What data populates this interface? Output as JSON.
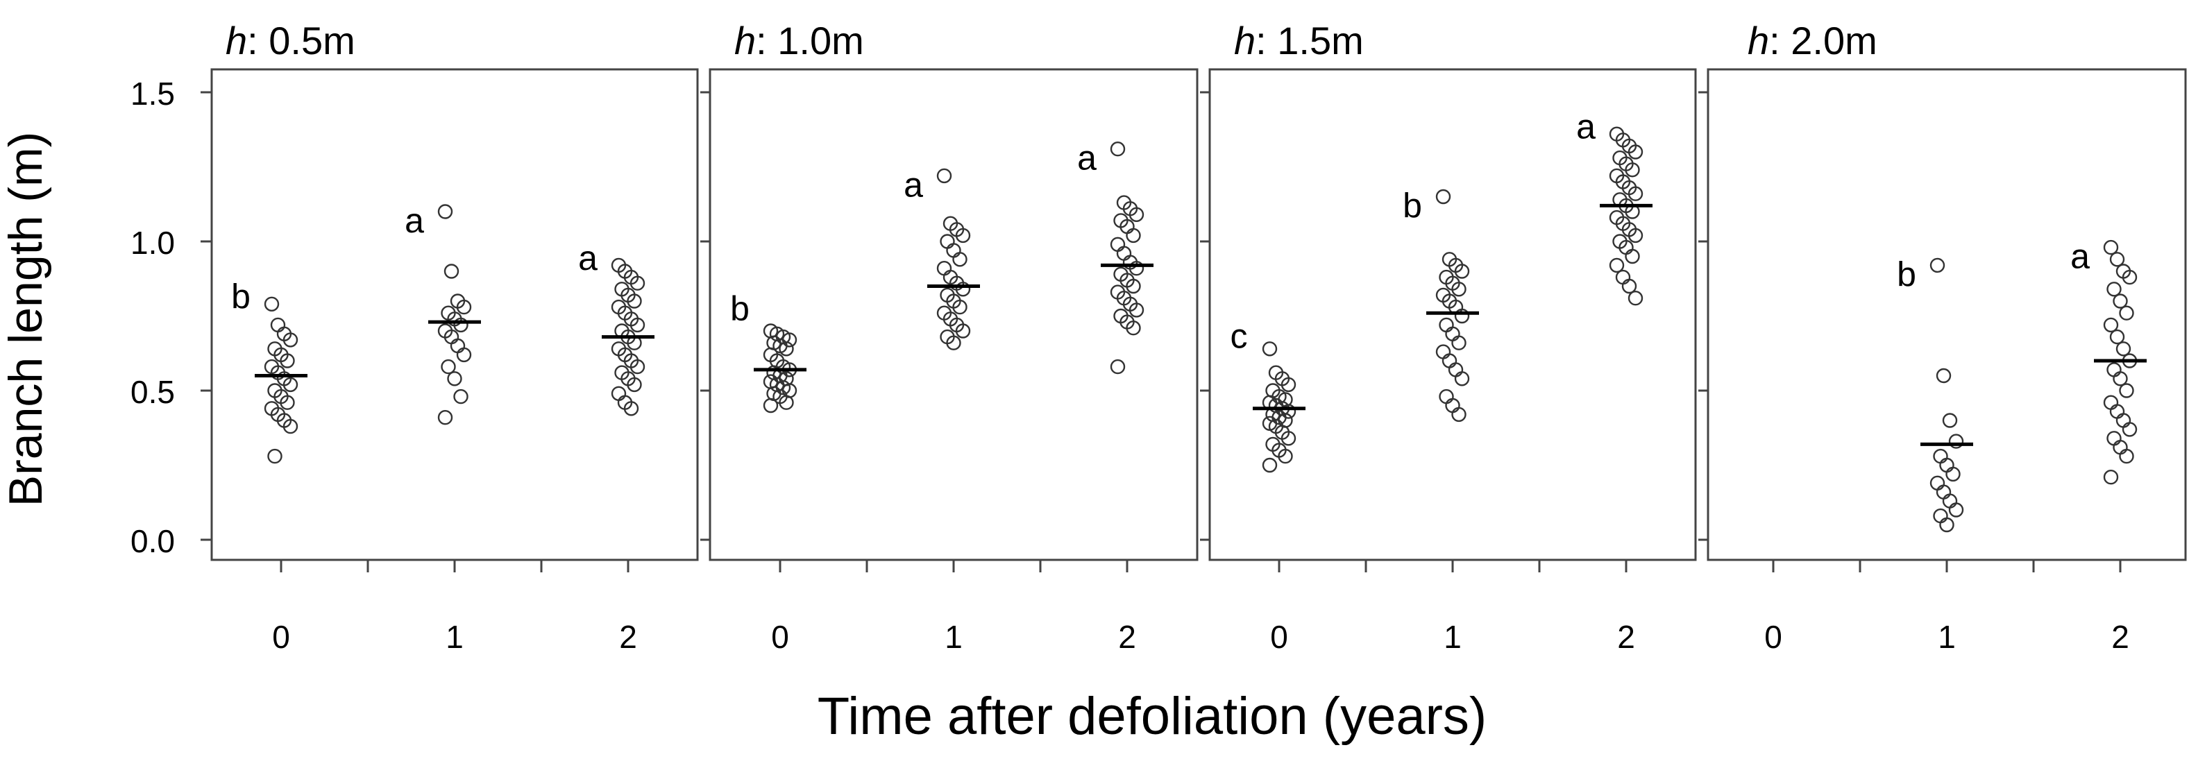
{
  "figure": {
    "ylabel": "Branch length (m)",
    "xlabel": "Time after defoliation (years)",
    "title_prefix": "h"
  },
  "chart_data": [
    {
      "type": "scatter",
      "title": "h: 0.5m",
      "title_value": "0.5m",
      "ylabel": "Branch length (m)",
      "xlabel": "Time after defoliation (years)",
      "ylim": [
        -0.05,
        1.6
      ],
      "yticks": [
        0.0,
        0.5,
        1.0,
        1.5
      ],
      "ytick_labels": [
        "0.0",
        "0.5",
        "1.0",
        "1.5"
      ],
      "categories": [
        "0",
        "1",
        "2"
      ],
      "groups": [
        {
          "x": "0",
          "mean": 0.55,
          "letter": "b",
          "points": [
            0.79,
            0.72,
            0.69,
            0.67,
            0.64,
            0.62,
            0.6,
            0.58,
            0.56,
            0.54,
            0.52,
            0.5,
            0.48,
            0.46,
            0.44,
            0.42,
            0.4,
            0.38,
            0.28
          ]
        },
        {
          "x": "1",
          "mean": 0.73,
          "letter": "a",
          "points": [
            1.1,
            0.9,
            0.8,
            0.78,
            0.76,
            0.74,
            0.72,
            0.7,
            0.68,
            0.65,
            0.62,
            0.58,
            0.54,
            0.48,
            0.41
          ]
        },
        {
          "x": "2",
          "mean": 0.68,
          "letter": "a",
          "points": [
            0.92,
            0.9,
            0.88,
            0.86,
            0.84,
            0.82,
            0.8,
            0.78,
            0.76,
            0.74,
            0.72,
            0.7,
            0.68,
            0.66,
            0.64,
            0.62,
            0.6,
            0.58,
            0.56,
            0.54,
            0.52,
            0.49,
            0.46,
            0.44
          ]
        }
      ]
    },
    {
      "type": "scatter",
      "title": "h: 1.0m",
      "title_value": "1.0m",
      "ylim": [
        -0.05,
        1.6
      ],
      "categories": [
        "0",
        "1",
        "2"
      ],
      "groups": [
        {
          "x": "0",
          "mean": 0.57,
          "letter": "b",
          "points": [
            0.7,
            0.69,
            0.68,
            0.67,
            0.66,
            0.65,
            0.64,
            0.62,
            0.6,
            0.58,
            0.57,
            0.56,
            0.55,
            0.54,
            0.53,
            0.52,
            0.51,
            0.5,
            0.49,
            0.48,
            0.46,
            0.45
          ]
        },
        {
          "x": "1",
          "mean": 0.85,
          "letter": "a",
          "points": [
            1.22,
            1.06,
            1.04,
            1.02,
            1.0,
            0.97,
            0.94,
            0.91,
            0.88,
            0.86,
            0.84,
            0.82,
            0.8,
            0.78,
            0.76,
            0.74,
            0.72,
            0.7,
            0.68,
            0.66
          ]
        },
        {
          "x": "2",
          "mean": 0.92,
          "letter": "a",
          "points": [
            1.31,
            1.13,
            1.11,
            1.09,
            1.07,
            1.05,
            1.02,
            0.99,
            0.96,
            0.93,
            0.91,
            0.89,
            0.87,
            0.85,
            0.83,
            0.81,
            0.79,
            0.77,
            0.75,
            0.73,
            0.71,
            0.58
          ]
        }
      ]
    },
    {
      "type": "scatter",
      "title": "h: 1.5m",
      "title_value": "1.5m",
      "ylim": [
        -0.05,
        1.6
      ],
      "categories": [
        "0",
        "1",
        "2"
      ],
      "groups": [
        {
          "x": "0",
          "mean": 0.44,
          "letter": "c",
          "points": [
            0.64,
            0.56,
            0.54,
            0.52,
            0.5,
            0.48,
            0.47,
            0.46,
            0.45,
            0.44,
            0.43,
            0.42,
            0.41,
            0.4,
            0.39,
            0.38,
            0.36,
            0.34,
            0.32,
            0.3,
            0.28,
            0.25
          ]
        },
        {
          "x": "1",
          "mean": 0.76,
          "letter": "b",
          "points": [
            1.15,
            0.94,
            0.92,
            0.9,
            0.88,
            0.86,
            0.84,
            0.82,
            0.8,
            0.78,
            0.75,
            0.72,
            0.69,
            0.66,
            0.63,
            0.6,
            0.57,
            0.54,
            0.48,
            0.45,
            0.42
          ]
        },
        {
          "x": "2",
          "mean": 1.12,
          "letter": "a",
          "points": [
            1.36,
            1.34,
            1.32,
            1.3,
            1.28,
            1.26,
            1.24,
            1.22,
            1.2,
            1.18,
            1.16,
            1.14,
            1.12,
            1.1,
            1.08,
            1.06,
            1.04,
            1.02,
            1.0,
            0.98,
            0.95,
            0.92,
            0.88,
            0.85,
            0.81
          ]
        }
      ]
    },
    {
      "type": "scatter",
      "title": "h: 2.0m",
      "title_value": "2.0m",
      "ylim": [
        -0.05,
        1.6
      ],
      "categories": [
        "0",
        "1",
        "2"
      ],
      "groups": [
        {
          "x": "0",
          "mean": null,
          "letter": "",
          "points": []
        },
        {
          "x": "1",
          "mean": 0.32,
          "letter": "b",
          "points": [
            0.92,
            0.55,
            0.4,
            0.33,
            0.28,
            0.25,
            0.22,
            0.19,
            0.16,
            0.13,
            0.1,
            0.08,
            0.05
          ]
        },
        {
          "x": "2",
          "mean": 0.6,
          "letter": "a",
          "points": [
            0.98,
            0.94,
            0.9,
            0.88,
            0.84,
            0.8,
            0.76,
            0.72,
            0.68,
            0.64,
            0.6,
            0.57,
            0.54,
            0.5,
            0.46,
            0.43,
            0.4,
            0.37,
            0.34,
            0.31,
            0.28,
            0.21
          ]
        }
      ]
    }
  ]
}
